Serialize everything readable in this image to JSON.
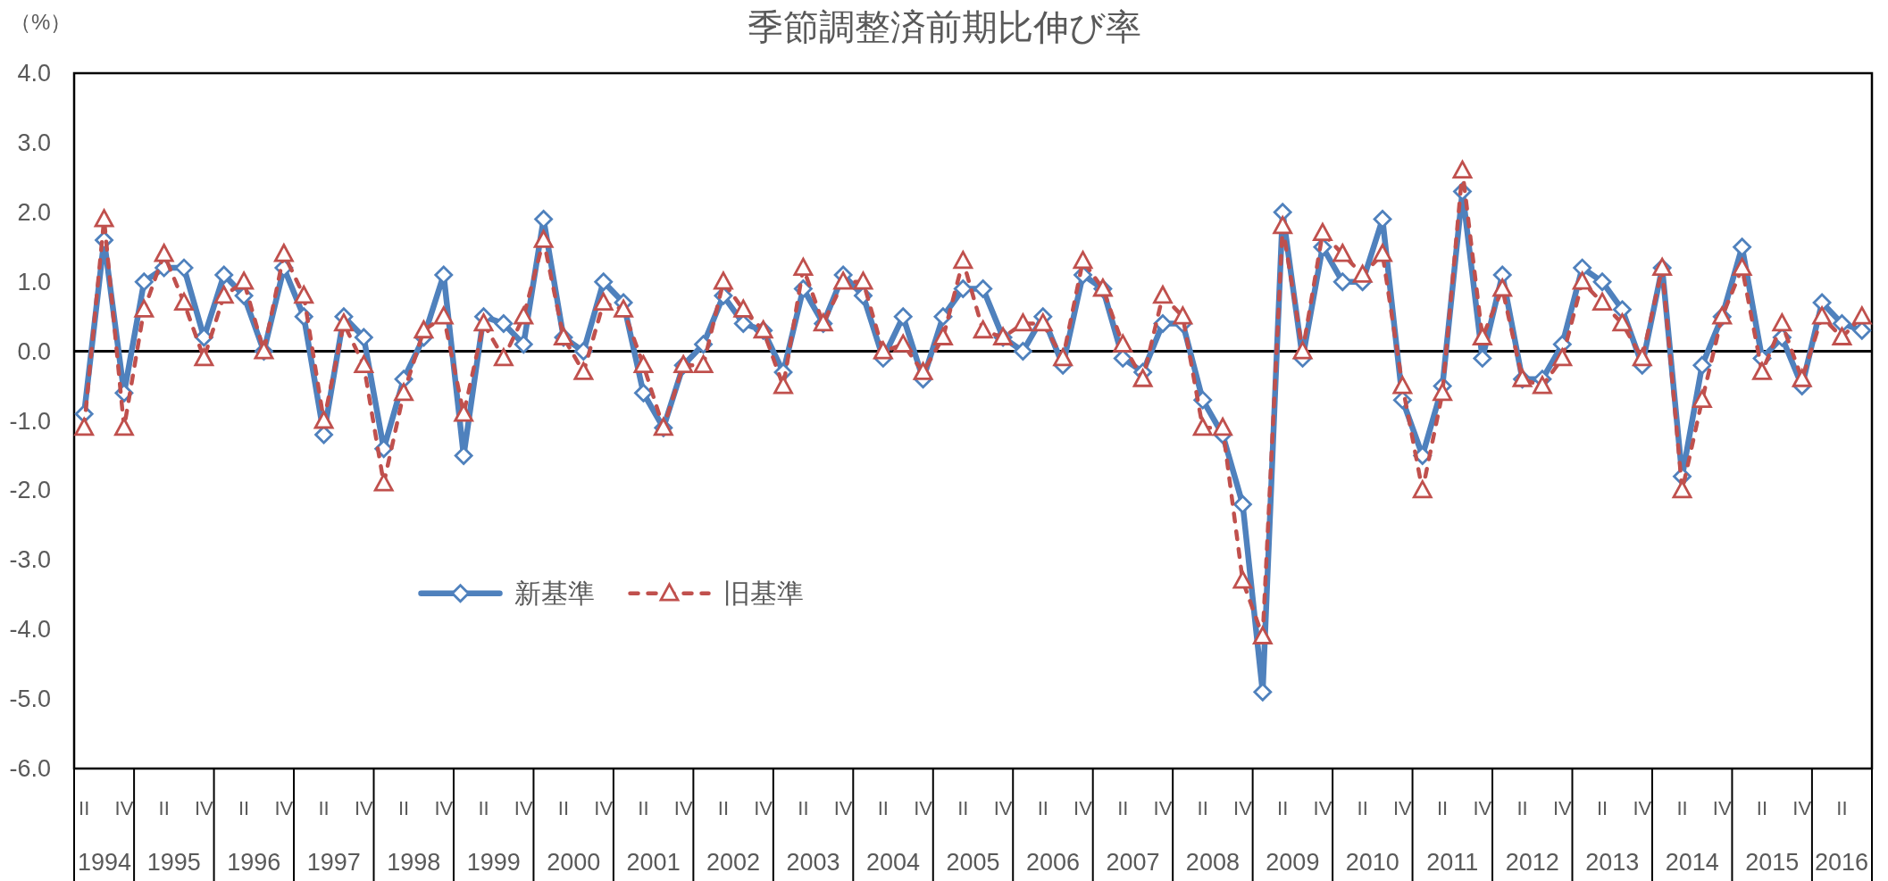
{
  "chart_data": {
    "type": "line",
    "title": "季節調整済前期比伸び率",
    "ylabel": "（%）",
    "categories": [
      "II",
      null,
      "IV",
      null,
      "II",
      null,
      "IV",
      null,
      "II",
      null,
      "IV",
      null,
      "II",
      null,
      "IV",
      null,
      "II",
      null,
      "IV",
      null,
      "II",
      null,
      "IV",
      null,
      "II",
      null,
      "IV",
      null,
      "II",
      null,
      "IV",
      null,
      "II",
      null,
      "IV",
      null,
      "II",
      null,
      "IV",
      null,
      "II",
      null,
      "IV",
      null,
      "II",
      null,
      "IV",
      null,
      "II",
      null,
      "IV",
      null,
      "II",
      null,
      "IV",
      null,
      "II",
      null,
      "IV",
      null,
      "II",
      null,
      "IV",
      null,
      "II",
      null,
      "IV",
      null,
      "II",
      null,
      "IV",
      null,
      "II",
      null,
      "IV",
      null,
      "II",
      null,
      "IV",
      null,
      "II",
      null,
      "IV",
      null,
      "II",
      null,
      "IV",
      null,
      "II",
      null
    ],
    "x2lim": [
      1993.75,
      2016.25
    ],
    "x2ticks": [
      1994,
      1995,
      1996,
      1997,
      1998,
      1999,
      2000,
      2001,
      2002,
      2003,
      2004,
      2005,
      2006,
      2007,
      2008,
      2009,
      2010,
      2011,
      2012,
      2013,
      2014,
      2015,
      2016
    ],
    "series": [
      {
        "name": "新基準",
        "color": "#4f81bd",
        "marker": "diamond",
        "line_style": "solid",
        "values": [
          -0.9,
          1.6,
          -0.6,
          1.0,
          1.2,
          1.2,
          0.2,
          1.1,
          0.8,
          0.0,
          1.2,
          0.5,
          -1.2,
          0.5,
          0.2,
          -1.4,
          -0.4,
          0.2,
          1.1,
          -1.5,
          0.5,
          0.4,
          0.1,
          1.9,
          0.2,
          0.0,
          1.0,
          0.7,
          -0.6,
          -1.1,
          -0.2,
          0.1,
          0.8,
          0.4,
          0.3,
          -0.3,
          0.9,
          0.4,
          1.1,
          0.8,
          -0.1,
          0.5,
          -0.4,
          0.5,
          0.9,
          0.9,
          0.2,
          0.0,
          0.5,
          -0.2,
          1.1,
          0.9,
          -0.1,
          -0.3,
          0.4,
          0.4,
          -0.7,
          -1.2,
          -2.2,
          -4.9,
          2.0,
          -0.1,
          1.5,
          1.0,
          1.0,
          1.9,
          -0.7,
          -1.5,
          -0.5,
          2.3,
          -0.1,
          1.1,
          -0.4,
          -0.4,
          0.1,
          1.2,
          1.0,
          0.6,
          -0.2,
          1.2,
          -1.8,
          -0.2,
          0.5,
          1.5,
          -0.1,
          0.2,
          -0.5,
          0.7,
          0.4,
          0.3
        ]
      },
      {
        "name": "旧基準",
        "color": "#c0504d",
        "marker": "triangle",
        "line_style": "dashed",
        "values": [
          -1.1,
          1.9,
          -1.1,
          0.6,
          1.4,
          0.7,
          -0.1,
          0.8,
          1.0,
          0.0,
          1.4,
          0.8,
          -1.0,
          0.4,
          -0.2,
          -1.9,
          -0.6,
          0.3,
          0.5,
          -0.9,
          0.4,
          -0.1,
          0.5,
          1.6,
          0.2,
          -0.3,
          0.7,
          0.6,
          -0.2,
          -1.1,
          -0.2,
          -0.2,
          1.0,
          0.6,
          0.3,
          -0.5,
          1.2,
          0.4,
          1.0,
          1.0,
          0.0,
          0.1,
          -0.3,
          0.2,
          1.3,
          0.3,
          0.2,
          0.4,
          0.4,
          -0.1,
          1.3,
          0.9,
          0.1,
          -0.4,
          0.8,
          0.5,
          -1.1,
          -1.1,
          -3.3,
          -4.1,
          1.8,
          0.0,
          1.7,
          1.4,
          1.1,
          1.4,
          -0.5,
          -2.0,
          -0.6,
          2.6,
          0.2,
          0.9,
          -0.4,
          -0.5,
          -0.1,
          1.0,
          0.7,
          0.4,
          -0.1,
          1.2,
          -2.0,
          -0.7,
          0.5,
          1.2,
          -0.3,
          0.4,
          -0.4,
          0.5,
          0.2,
          0.5
        ]
      }
    ],
    "ylim": [
      -6,
      4
    ],
    "yticks": [
      {
        "value": -6,
        "label": "-6.0"
      },
      {
        "value": -5,
        "label": "-5.0"
      },
      {
        "value": -4,
        "label": "-4.0"
      },
      {
        "value": -3,
        "label": "-3.0"
      },
      {
        "value": -2,
        "label": "-2.0"
      },
      {
        "value": -1,
        "label": "-1.0"
      },
      {
        "value": 0,
        "label": "0.0"
      },
      {
        "value": 1,
        "label": "1.0"
      },
      {
        "value": 2,
        "label": "2.0"
      },
      {
        "value": 3,
        "label": "3.0"
      },
      {
        "value": 4,
        "label": "4.0"
      }
    ],
    "legend": "bottom left"
  }
}
